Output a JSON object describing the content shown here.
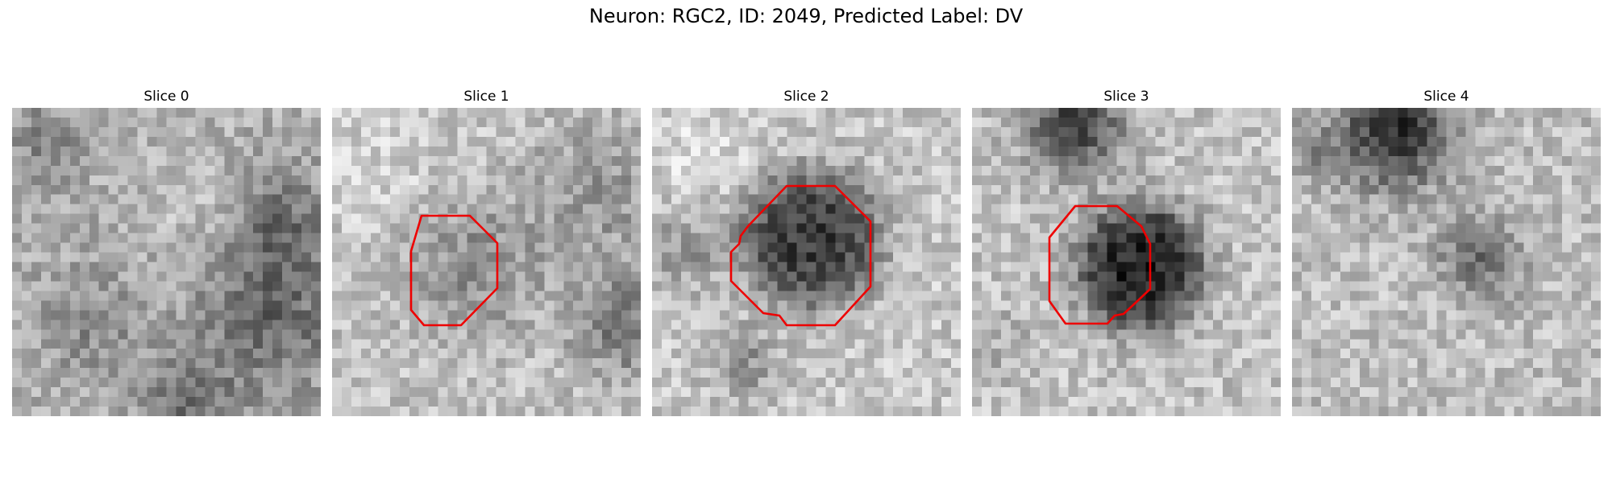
{
  "figure": {
    "title": "Neuron: RGC2, ID: 2049, Predicted Label: DV"
  },
  "colors": {
    "contour": "#ee0000",
    "background": "#ffffff",
    "colormap": "grayscale"
  },
  "panels": [
    {
      "title": "Slice 0",
      "has_contour": false
    },
    {
      "title": "Slice 1",
      "has_contour": true
    },
    {
      "title": "Slice 2",
      "has_contour": true
    },
    {
      "title": "Slice 3",
      "has_contour": true
    },
    {
      "title": "Slice 4",
      "has_contour": false
    }
  ]
}
